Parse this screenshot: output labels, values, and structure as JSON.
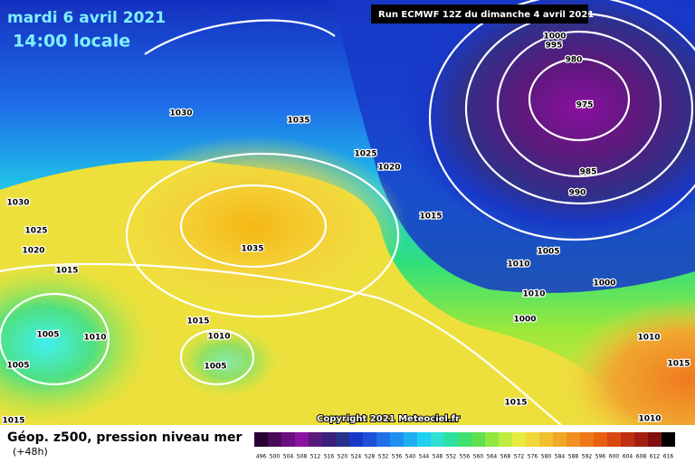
{
  "header": {
    "date": "mardi 6 avril 2021",
    "time": "14:00 locale",
    "run": "Run ECMWF 12Z du dimanche 4 avril 2021"
  },
  "footer": {
    "title": "Géop. z500, pression niveau mer",
    "lead": "(+48h)",
    "copyright": "Copyright 2021 Meteociel.fr"
  },
  "isobar_labels": [
    "1000",
    "995",
    "980",
    "975",
    "985",
    "990",
    "1030",
    "1035",
    "1025",
    "1020",
    "1015",
    "1035",
    "1005",
    "1010",
    "1000",
    "1010",
    "1000",
    "1030",
    "1025",
    "1020",
    "1015",
    "1015",
    "1010",
    "1005",
    "1010",
    "1005",
    "1005",
    "1010",
    "1015",
    "1015",
    "1010",
    "1015"
  ],
  "colorbar": {
    "labels": [
      "496",
      "500",
      "504",
      "508",
      "512",
      "516",
      "520",
      "524",
      "528",
      "532",
      "536",
      "540",
      "544",
      "548",
      "552",
      "556",
      "560",
      "564",
      "568",
      "572",
      "576",
      "580",
      "584",
      "588",
      "592",
      "596",
      "600",
      "604",
      "608",
      "612",
      "616"
    ]
  }
}
